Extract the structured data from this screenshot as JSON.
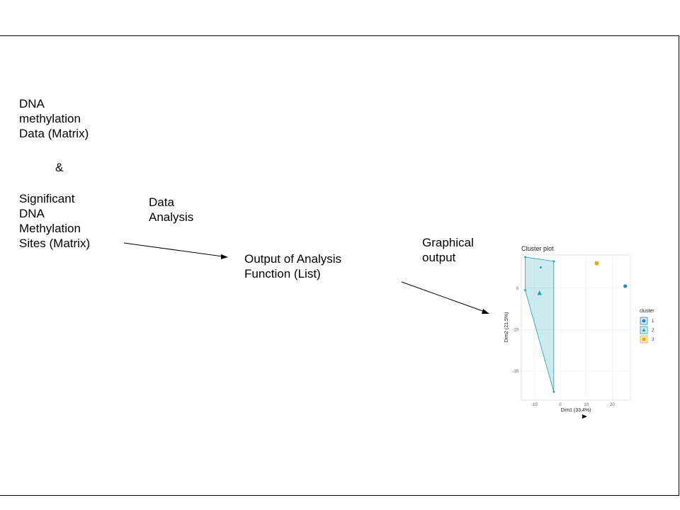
{
  "texts": {
    "input_data": "DNA\nmethylation\nData (Matrix)",
    "ampersand": "&",
    "sig_sites": "Significant\nDNA\nMethylation\nSites (Matrix)",
    "data_analysis": "Data\nAnalysis",
    "output_list": "Output of Analysis\nFunction (List)",
    "graphical_output": "Graphical\noutput"
  },
  "chart_data": {
    "type": "scatter",
    "title": "Cluster plot",
    "xlabel": "Dim1 (33.4%)",
    "ylabel": "Dim2 (21.5%)",
    "xlim": [
      -15,
      27
    ],
    "ylim": [
      -27,
      8
    ],
    "xticks": [
      -10,
      0,
      10,
      20
    ],
    "yticks": [
      0,
      -10,
      -20
    ],
    "grid": true,
    "legend": {
      "title": "cluster",
      "placement": "right"
    },
    "series": [
      {
        "name": "1",
        "shape": "circle",
        "color": "#2E86C1",
        "points": [
          [
            25,
            0.5
          ]
        ],
        "centroid": null
      },
      {
        "name": "2",
        "shape": "triangle",
        "color": "#17A2B8",
        "points": [
          [
            -13.5,
            7.5
          ],
          [
            -13.5,
            -0.5
          ],
          [
            -7.5,
            5
          ],
          [
            -2.5,
            6.5
          ],
          [
            -2.5,
            -25
          ]
        ],
        "centroid": [
          -8,
          -1.2
        ]
      },
      {
        "name": "3",
        "shape": "square",
        "color": "#E6A817",
        "points": [
          [
            14,
            6
          ]
        ],
        "centroid": null
      }
    ]
  }
}
